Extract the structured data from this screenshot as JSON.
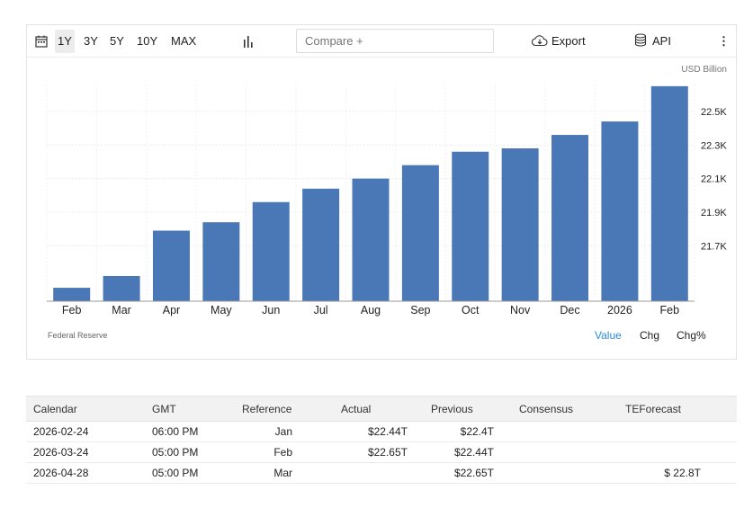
{
  "toolbar": {
    "ranges": [
      "1Y",
      "3Y",
      "5Y",
      "10Y",
      "MAX"
    ],
    "compare_placeholder": "Compare +",
    "export_label": "Export",
    "api_label": "API",
    "more_label": "⋮"
  },
  "chart_data": {
    "type": "bar",
    "unit": "USD Billion",
    "categories": [
      "Feb",
      "Mar",
      "Apr",
      "May",
      "Jun",
      "Jul",
      "Aug",
      "Sep",
      "Oct",
      "Nov",
      "Dec",
      "2026",
      "Feb"
    ],
    "values": [
      21.45,
      21.52,
      21.79,
      21.84,
      21.96,
      22.04,
      22.1,
      22.18,
      22.26,
      22.28,
      22.36,
      22.44,
      22.65
    ],
    "yticks": [
      21.7,
      21.9,
      22.1,
      22.3,
      22.5
    ],
    "ytick_labels": [
      "21.7K",
      "21.9K",
      "22.1K",
      "22.3K",
      "22.5K"
    ],
    "ylim": [
      21.37,
      22.66
    ],
    "color": "#4a78b7",
    "source": "Federal Reserve"
  },
  "modes": {
    "value": "Value",
    "chg": "Chg",
    "chgpct": "Chg%"
  },
  "calendar": {
    "headers": [
      "Calendar",
      "GMT",
      "Reference",
      "Actual",
      "Previous",
      "Consensus",
      "TEForecast"
    ],
    "rows": [
      [
        "2026-02-24",
        "06:00 PM",
        "Jan",
        "$22.44T",
        "$22.4T",
        "",
        ""
      ],
      [
        "2026-03-24",
        "05:00 PM",
        "Feb",
        "$22.65T",
        "$22.44T",
        "",
        ""
      ],
      [
        "2026-04-28",
        "05:00 PM",
        "Mar",
        "",
        "$22.65T",
        "",
        "$ 22.8T"
      ]
    ]
  }
}
